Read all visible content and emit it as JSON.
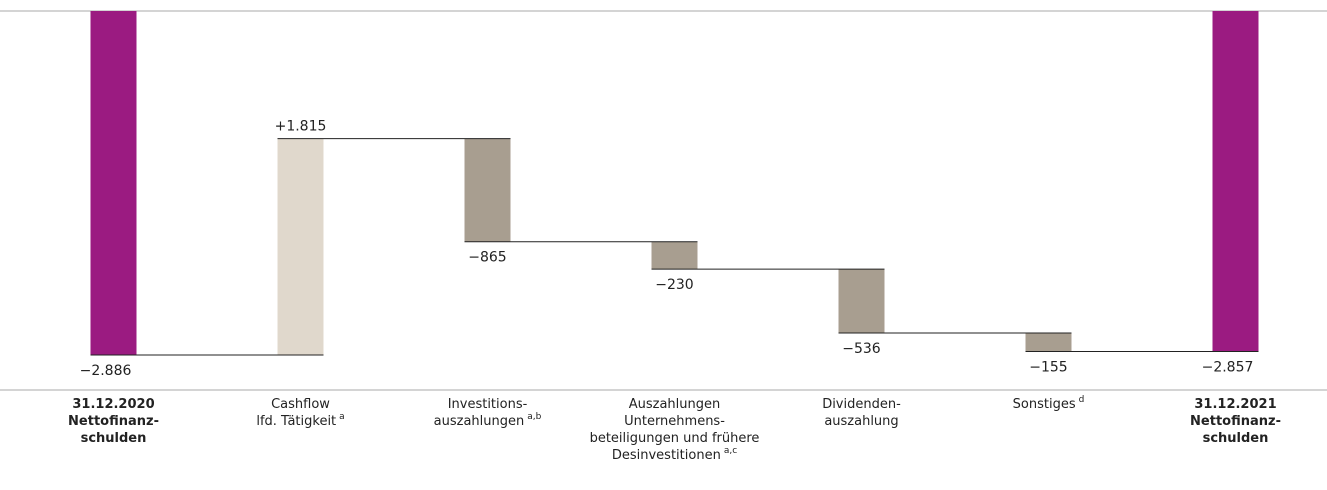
{
  "chart_data": {
    "type": "waterfall",
    "categories": [
      [
        "31.12.2020",
        "Nettofinanz-",
        "schulden"
      ],
      [
        "Cashflow",
        "lfd. Tätigkeit"
      ],
      [
        "Investitions-",
        "auszahlungen"
      ],
      [
        "Auszahlungen",
        "Unternehmens-",
        "beteiligungen und frühere",
        "Desinvestitionen"
      ],
      [
        "Dividenden-",
        "auszahlung"
      ],
      [
        "Sonstiges"
      ],
      [
        "31.12.2021",
        "Nettofinanz-",
        "schulden"
      ]
    ],
    "footnotes": [
      null,
      "a",
      "a,b",
      "a,c",
      null,
      "d",
      null
    ],
    "values": [
      -2886,
      1815,
      -865,
      -230,
      -536,
      -155,
      -2857
    ],
    "value_labels": [
      "−2.886",
      "+1.815",
      "−865",
      "−230",
      "−536",
      "−155",
      "−2.857"
    ],
    "totals": [
      true,
      false,
      false,
      false,
      false,
      false,
      true
    ],
    "colors": {
      "total": "#9b1b81",
      "increase": "#e0d8cc",
      "decrease": "#a89e90"
    },
    "ylim": [
      -3180,
      0
    ]
  }
}
